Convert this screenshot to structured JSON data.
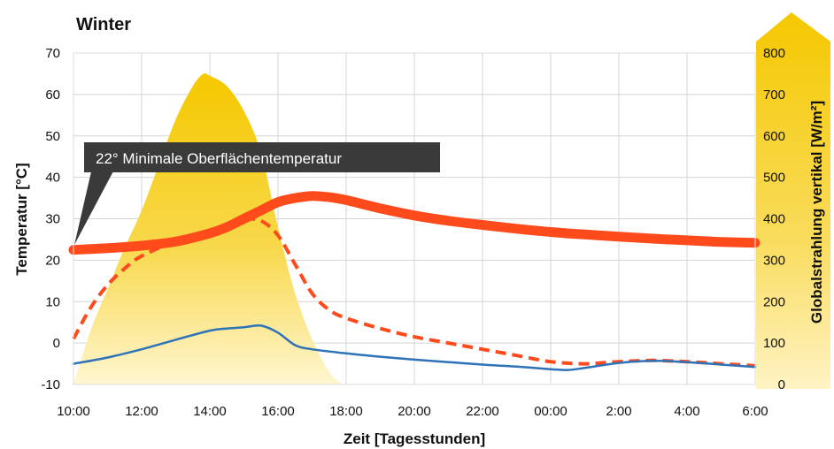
{
  "chart_data": {
    "type": "line",
    "title": "Winter",
    "xlabel": "Zeit [Tagesstunden]",
    "ylabel": "Temperatur [°C]",
    "y2label": "Globalstrahlung vertikal [W/m²]",
    "x_ticks": [
      "10:00",
      "12:00",
      "14:00",
      "16:00",
      "18:00",
      "20:00",
      "22:00",
      "00:00",
      "2:00",
      "4:00",
      "6:00"
    ],
    "ylim": [
      -10,
      70
    ],
    "y_ticks": [
      -10,
      0,
      10,
      20,
      30,
      40,
      50,
      60,
      70
    ],
    "y2lim": [
      0,
      800
    ],
    "y2_ticks": [
      0,
      100,
      200,
      300,
      400,
      500,
      600,
      700,
      800
    ],
    "grid": true,
    "annotation": "22° Minimale Oberflächentemperatur",
    "series": [
      {
        "axis": "right",
        "style": "area",
        "color": "#f5c800",
        "x": [
          10,
          10.5,
          11,
          11.5,
          12,
          12.5,
          13,
          13.5,
          13.8,
          14,
          14.5,
          15,
          15.5,
          16,
          16.5,
          17,
          17.5,
          17.9
        ],
        "values": [
          0,
          130,
          230,
          330,
          420,
          530,
          640,
          720,
          749,
          745,
          720,
          660,
          560,
          380,
          220,
          110,
          30,
          0
        ]
      },
      {
        "axis": "left",
        "style": "thick-line",
        "color": "#ff4a1c",
        "x": [
          10,
          11,
          12,
          13,
          14,
          14.5,
          15,
          15.5,
          16,
          16.5,
          17,
          17.5,
          18,
          19,
          20,
          21,
          22,
          23,
          24,
          25,
          26,
          27,
          28,
          29,
          30
        ],
        "values": [
          22.5,
          22.9,
          23.5,
          24.5,
          26.5,
          28,
          30,
          32,
          34,
          35,
          35.5,
          35.2,
          34.5,
          32.5,
          30.8,
          29.5,
          28.5,
          27.6,
          26.8,
          26.2,
          25.7,
          25.2,
          24.8,
          24.4,
          24.2
        ]
      },
      {
        "axis": "left",
        "style": "dashed",
        "color": "#ff4a1c",
        "x": [
          10,
          10.5,
          11,
          11.5,
          12,
          13,
          14,
          14.5,
          15,
          15.5,
          16,
          16.5,
          17,
          17.5,
          18,
          19,
          20,
          21,
          22,
          23,
          24,
          25,
          26,
          27,
          28,
          29,
          30
        ],
        "values": [
          1,
          8.5,
          14,
          18,
          21,
          24.5,
          26.5,
          28,
          29.8,
          29.5,
          26,
          19,
          12,
          8,
          6,
          3.5,
          1.5,
          0,
          -1.5,
          -3,
          -4.5,
          -5,
          -4.5,
          -4.2,
          -4.5,
          -5,
          -5.5
        ]
      },
      {
        "axis": "left",
        "style": "line",
        "color": "#2e72b8",
        "x": [
          10,
          11,
          12,
          13,
          14,
          14.5,
          15,
          15.5,
          16,
          16.5,
          17,
          18,
          19,
          20,
          21,
          22,
          23,
          24,
          24.5,
          25,
          26,
          27,
          28,
          29,
          30
        ],
        "values": [
          -5,
          -3.5,
          -1.5,
          0.8,
          3,
          3.5,
          3.8,
          4.2,
          2.5,
          -0.5,
          -1.5,
          -2.5,
          -3.3,
          -4,
          -4.6,
          -5.2,
          -5.7,
          -6.3,
          -6.5,
          -6,
          -4.8,
          -4.3,
          -4.6,
          -5.2,
          -5.8
        ]
      }
    ]
  }
}
